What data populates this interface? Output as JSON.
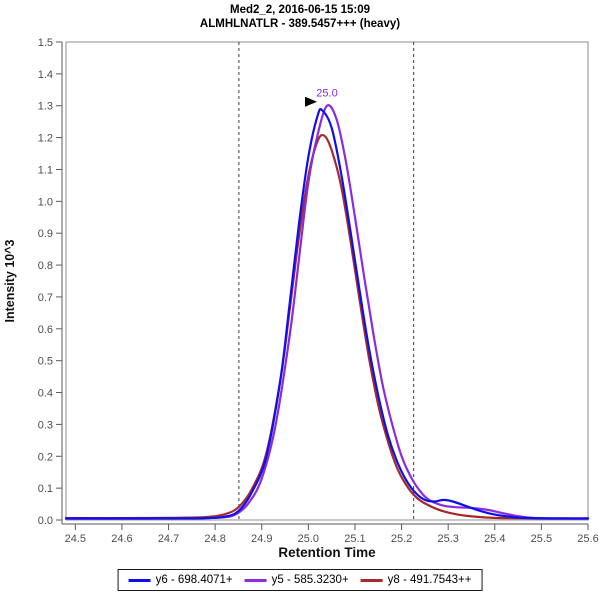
{
  "chart_data": {
    "type": "line",
    "title": "Med2_2, 2016-06-15 15:09",
    "subtitle": "ALMHLNATLR - 389.5457+++ (heavy)",
    "xlabel": "Retention Time",
    "ylabel": "Intensity 10^3",
    "xlim": [
      24.48,
      25.6
    ],
    "ylim": [
      0,
      1.5
    ],
    "xticks": [
      24.5,
      24.6,
      24.7,
      24.8,
      24.9,
      25.0,
      25.1,
      25.2,
      25.3,
      25.4,
      25.5,
      25.6
    ],
    "yticks": [
      0.0,
      0.1,
      0.2,
      0.3,
      0.4,
      0.5,
      0.6,
      0.7,
      0.8,
      0.9,
      1.0,
      1.1,
      1.2,
      1.3,
      1.4,
      1.5
    ],
    "grid": false,
    "legend_position": "bottom-center",
    "peak_boundaries": [
      24.851,
      25.226
    ],
    "annotation": {
      "text": "25.0",
      "rt": 25.04,
      "intensity": 1.3,
      "color": "#8A2BE2",
      "pointer_color": "#000000"
    },
    "series": [
      {
        "name": "y6 - 698.4071+",
        "color": "#0F0FEE",
        "points": [
          [
            24.48,
            0.005
          ],
          [
            24.6,
            0.005
          ],
          [
            24.7,
            0.005
          ],
          [
            24.78,
            0.006
          ],
          [
            24.82,
            0.01
          ],
          [
            24.85,
            0.028
          ],
          [
            24.88,
            0.09
          ],
          [
            24.91,
            0.2
          ],
          [
            24.94,
            0.44
          ],
          [
            24.96,
            0.68
          ],
          [
            24.98,
            0.93
          ],
          [
            25.0,
            1.14
          ],
          [
            25.02,
            1.27
          ],
          [
            25.03,
            1.285
          ],
          [
            25.05,
            1.23
          ],
          [
            25.07,
            1.09
          ],
          [
            25.09,
            0.91
          ],
          [
            25.11,
            0.72
          ],
          [
            25.13,
            0.54
          ],
          [
            25.15,
            0.39
          ],
          [
            25.17,
            0.27
          ],
          [
            25.19,
            0.185
          ],
          [
            25.21,
            0.125
          ],
          [
            25.23,
            0.085
          ],
          [
            25.25,
            0.063
          ],
          [
            25.27,
            0.058
          ],
          [
            25.29,
            0.063
          ],
          [
            25.31,
            0.058
          ],
          [
            25.34,
            0.043
          ],
          [
            25.37,
            0.028
          ],
          [
            25.4,
            0.017
          ],
          [
            25.44,
            0.009
          ],
          [
            25.48,
            0.006
          ],
          [
            25.55,
            0.005
          ],
          [
            25.6,
            0.005
          ]
        ]
      },
      {
        "name": "y5 - 585.3230+",
        "color": "#8A2BE2",
        "points": [
          [
            24.48,
            0.004
          ],
          [
            24.6,
            0.004
          ],
          [
            24.72,
            0.005
          ],
          [
            24.8,
            0.007
          ],
          [
            24.84,
            0.015
          ],
          [
            24.87,
            0.05
          ],
          [
            24.9,
            0.13
          ],
          [
            24.93,
            0.3
          ],
          [
            24.96,
            0.58
          ],
          [
            24.98,
            0.82
          ],
          [
            25.0,
            1.06
          ],
          [
            25.02,
            1.21
          ],
          [
            25.04,
            1.3
          ],
          [
            25.06,
            1.26
          ],
          [
            25.08,
            1.13
          ],
          [
            25.1,
            0.95
          ],
          [
            25.12,
            0.76
          ],
          [
            25.14,
            0.58
          ],
          [
            25.16,
            0.42
          ],
          [
            25.18,
            0.3
          ],
          [
            25.2,
            0.2
          ],
          [
            25.22,
            0.135
          ],
          [
            25.24,
            0.09
          ],
          [
            25.26,
            0.062
          ],
          [
            25.29,
            0.045
          ],
          [
            25.32,
            0.04
          ],
          [
            25.35,
            0.038
          ],
          [
            25.38,
            0.033
          ],
          [
            25.41,
            0.024
          ],
          [
            25.45,
            0.012
          ],
          [
            25.49,
            0.006
          ],
          [
            25.55,
            0.004
          ],
          [
            25.6,
            0.004
          ]
        ]
      },
      {
        "name": "y8 - 491.7543++",
        "color": "#A52A2A",
        "points": [
          [
            24.48,
            0.006
          ],
          [
            24.6,
            0.006
          ],
          [
            24.7,
            0.007
          ],
          [
            24.78,
            0.009
          ],
          [
            24.82,
            0.018
          ],
          [
            24.85,
            0.04
          ],
          [
            24.88,
            0.1
          ],
          [
            24.91,
            0.21
          ],
          [
            24.94,
            0.44
          ],
          [
            24.96,
            0.66
          ],
          [
            24.98,
            0.89
          ],
          [
            25.0,
            1.08
          ],
          [
            25.02,
            1.19
          ],
          [
            25.035,
            1.205
          ],
          [
            25.05,
            1.16
          ],
          [
            25.07,
            1.05
          ],
          [
            25.09,
            0.88
          ],
          [
            25.11,
            0.69
          ],
          [
            25.13,
            0.51
          ],
          [
            25.15,
            0.36
          ],
          [
            25.17,
            0.25
          ],
          [
            25.19,
            0.165
          ],
          [
            25.21,
            0.11
          ],
          [
            25.23,
            0.073
          ],
          [
            25.25,
            0.052
          ],
          [
            25.28,
            0.032
          ],
          [
            25.31,
            0.02
          ],
          [
            25.34,
            0.013
          ],
          [
            25.38,
            0.008
          ],
          [
            25.42,
            0.006
          ],
          [
            25.5,
            0.005
          ],
          [
            25.6,
            0.005
          ]
        ]
      }
    ]
  }
}
